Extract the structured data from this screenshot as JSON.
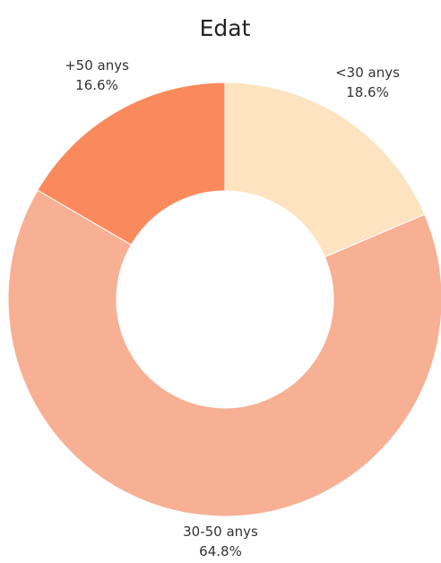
{
  "chart_data": {
    "type": "pie",
    "title": "Edat",
    "hole": 0.5,
    "slices": [
      {
        "label": "<30 anys",
        "value": 18.6,
        "percent_label": "18.6%",
        "color": "#fde3c0"
      },
      {
        "label": "30-50 anys",
        "value": 64.8,
        "percent_label": "64.8%",
        "color": "#f7b094"
      },
      {
        "label": "+50 anys",
        "value": 16.6,
        "percent_label": "16.6%",
        "color": "#fa8a5d"
      }
    ],
    "start": "12 o'clock",
    "direction": "clockwise",
    "legend": "none"
  }
}
